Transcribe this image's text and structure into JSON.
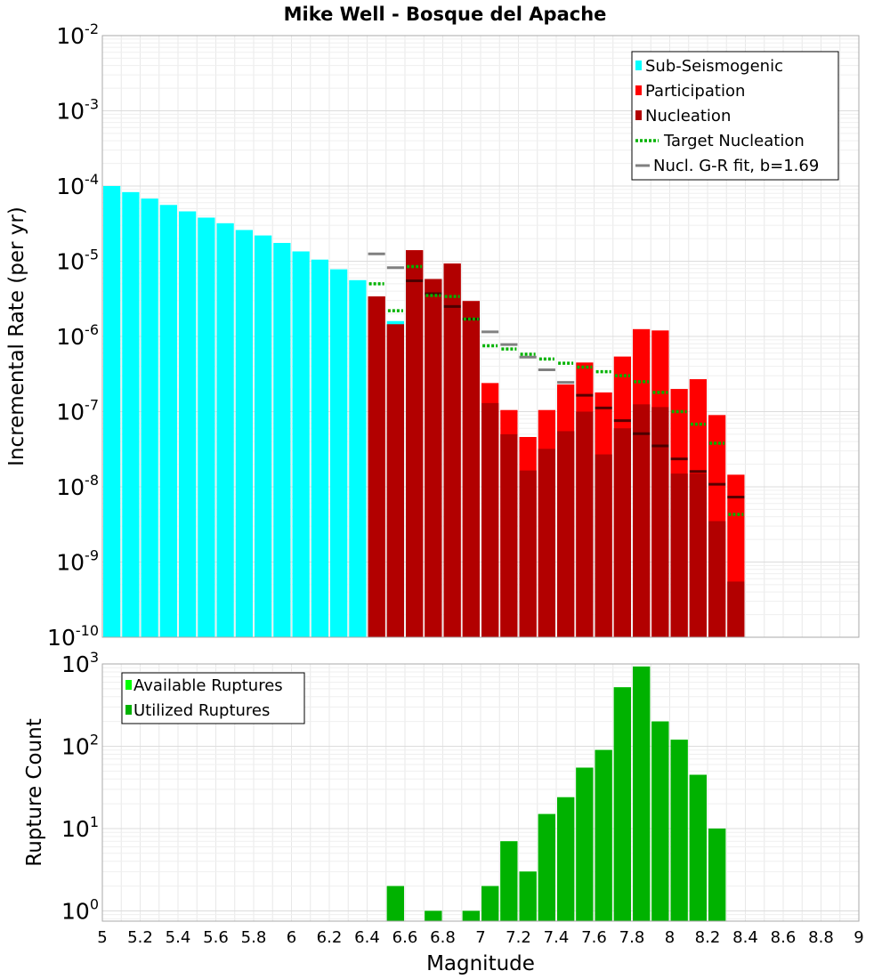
{
  "title": "Mike Well - Bosque del Apache",
  "chart_data": [
    {
      "type": "bar",
      "yscale": "log",
      "ylabel": "Incremental Rate (per yr)",
      "xlim": [
        5,
        9
      ],
      "ylim": [
        1e-10,
        0.01
      ],
      "ytick_labels": [
        {
          "base": "10",
          "exp": "-10",
          "value": 1e-10
        },
        {
          "base": "10",
          "exp": "-9",
          "value": 1e-09
        },
        {
          "base": "10",
          "exp": "-8",
          "value": 1e-08
        },
        {
          "base": "10",
          "exp": "-7",
          "value": 1e-07
        },
        {
          "base": "10",
          "exp": "-6",
          "value": 1e-06
        },
        {
          "base": "10",
          "exp": "-5",
          "value": 1e-05
        },
        {
          "base": "10",
          "exp": "-4",
          "value": 0.0001
        },
        {
          "base": "10",
          "exp": "-3",
          "value": 0.001
        },
        {
          "base": "10",
          "exp": "-2",
          "value": 0.01
        }
      ],
      "grid": true,
      "legend_position": "top-right",
      "bin_width": 0.1,
      "colors": {
        "sub_seismogenic": "#00ffff",
        "participation": "#ff0000",
        "nucleation": "#b20000",
        "target_nucleation": "#00b200",
        "gr_fit": "#808080"
      },
      "series": [
        {
          "name": "Sub-Seismogenic",
          "x": [
            5.05,
            5.15,
            5.25,
            5.35,
            5.45,
            5.55,
            5.65,
            5.75,
            5.85,
            5.95,
            6.05,
            6.15,
            6.25,
            6.35,
            6.55
          ],
          "values": [
            0.0001,
            8.3e-05,
            6.8e-05,
            5.6e-05,
            4.6e-05,
            3.8e-05,
            3.2e-05,
            2.6e-05,
            2.2e-05,
            1.75e-05,
            1.35e-05,
            1.05e-05,
            7.8e-06,
            5.6e-06,
            1.6e-06
          ]
        },
        {
          "name": "Participation",
          "x": [
            6.45,
            6.55,
            6.65,
            6.75,
            6.85,
            6.95,
            7.05,
            7.15,
            7.25,
            7.35,
            7.45,
            7.55,
            7.65,
            7.75,
            7.85,
            7.95,
            8.05,
            8.15,
            8.25,
            8.35
          ],
          "values": [
            3.4e-06,
            1.45e-06,
            1.4e-05,
            5.8e-06,
            9.3e-06,
            2.95e-06,
            2.4e-07,
            1.05e-07,
            4.6e-08,
            1.05e-07,
            2.3e-07,
            4.5e-07,
            1.8e-07,
            5.4e-07,
            1.25e-06,
            1.2e-06,
            2e-07,
            2.7e-07,
            9e-08,
            1.45e-08
          ]
        },
        {
          "name": "Nucleation",
          "x": [
            6.45,
            6.55,
            6.65,
            6.75,
            6.85,
            6.95,
            7.05,
            7.15,
            7.25,
            7.35,
            7.45,
            7.55,
            7.65,
            7.75,
            7.85,
            7.95,
            8.05,
            8.15,
            8.25,
            8.35
          ],
          "values": [
            3.4e-06,
            1.45e-06,
            1.4e-05,
            5.8e-06,
            9.3e-06,
            2.95e-06,
            1.3e-07,
            5e-08,
            1.65e-08,
            3.2e-08,
            5.5e-08,
            1e-07,
            2.7e-08,
            6e-08,
            1.25e-07,
            1.15e-07,
            1.5e-08,
            1.5e-08,
            3.5e-09,
            5.5e-10
          ]
        },
        {
          "name": "Target Nucleation",
          "style": "dotted",
          "x": [
            6.45,
            6.55,
            6.65,
            6.75,
            6.85,
            6.95,
            7.05,
            7.15,
            7.25,
            7.35,
            7.45,
            7.55,
            7.65,
            7.75,
            7.85,
            7.95,
            8.05,
            8.15,
            8.25,
            8.35
          ],
          "values": [
            5e-06,
            2.2e-06,
            8.5e-06,
            3.5e-06,
            3.4e-06,
            1.7e-06,
            7.5e-07,
            6.8e-07,
            5.8e-07,
            5e-07,
            4.4e-07,
            3.9e-07,
            3.4e-07,
            3e-07,
            2.5e-07,
            1.8e-07,
            1e-07,
            6.8e-08,
            3.8e-08,
            4.3e-09
          ]
        },
        {
          "name": "Nucl. G-R fit, b=1.69",
          "style": "dash",
          "x": [
            6.45,
            6.55,
            6.65,
            6.75,
            6.85,
            6.95,
            7.05,
            7.15,
            7.25,
            7.35,
            7.45,
            7.55,
            7.65,
            7.75,
            7.85,
            7.95,
            8.05,
            8.15,
            8.25,
            8.35
          ],
          "values": [
            1.25e-05,
            8.2e-06,
            5.5e-06,
            3.7e-06,
            2.5e-06,
            1.7e-06,
            1.15e-06,
            7.8e-07,
            5.3e-07,
            3.6e-07,
            2.45e-07,
            1.65e-07,
            1.12e-07,
            7.6e-08,
            5.1e-08,
            3.5e-08,
            2.35e-08,
            1.6e-08,
            1.08e-08,
            7.3e-09
          ]
        }
      ]
    },
    {
      "type": "bar",
      "yscale": "log",
      "ylabel": "Rupture Count",
      "xlabel": "Magnitude",
      "xlim": [
        5,
        9
      ],
      "ylim": [
        0.75,
        1000
      ],
      "ytick_labels": [
        {
          "base": "10",
          "exp": "0",
          "value": 1
        },
        {
          "base": "10",
          "exp": "1",
          "value": 10
        },
        {
          "base": "10",
          "exp": "2",
          "value": 100
        },
        {
          "base": "10",
          "exp": "3",
          "value": 1000
        }
      ],
      "xtick_labels": [
        "5",
        "5.2",
        "5.4",
        "5.6",
        "5.8",
        "6",
        "6.2",
        "6.4",
        "6.6",
        "6.8",
        "7",
        "7.2",
        "7.4",
        "7.6",
        "7.8",
        "8",
        "8.2",
        "8.4",
        "8.6",
        "8.8",
        "9"
      ],
      "grid": true,
      "legend_position": "top-left",
      "bin_width": 0.1,
      "colors": {
        "available": "#00ff00",
        "utilized": "#00b200"
      },
      "series": [
        {
          "name": "Available Ruptures",
          "x": [
            6.55,
            6.75,
            6.95,
            7.05,
            7.15,
            7.25,
            7.35,
            7.45,
            7.55,
            7.65,
            7.75,
            7.85,
            7.95,
            8.05,
            8.15,
            8.25
          ],
          "values": [
            2,
            1,
            1,
            2,
            7,
            3,
            15,
            24,
            55,
            90,
            520,
            930,
            200,
            120,
            45,
            10
          ]
        },
        {
          "name": "Utilized Ruptures",
          "x": [
            6.55,
            6.75,
            6.95,
            7.05,
            7.15,
            7.25,
            7.35,
            7.45,
            7.55,
            7.65,
            7.75,
            7.85,
            7.95,
            8.05,
            8.15,
            8.25
          ],
          "values": [
            2,
            1,
            1,
            2,
            7,
            3,
            15,
            24,
            55,
            90,
            520,
            930,
            200,
            120,
            45,
            10
          ]
        }
      ]
    }
  ]
}
